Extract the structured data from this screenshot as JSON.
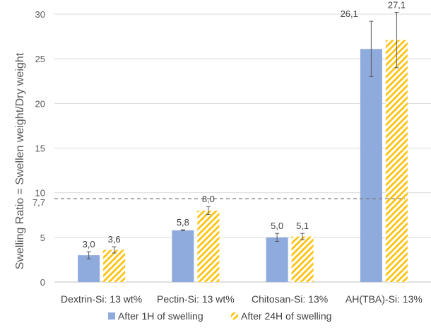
{
  "chart_data": {
    "type": "bar",
    "ylabel": "Swelling Ratio = Swellen weight/Dry weight",
    "xlabel": "",
    "ylim": [
      0,
      30
    ],
    "yticks": [
      0,
      5,
      10,
      15,
      20,
      25,
      30
    ],
    "grid": true,
    "legend_position": "bottom",
    "categories": [
      "Dextrin-Si: 13 wt%",
      "Pectin-Si: 13 wt%",
      "Chitosan-Si: 13%",
      "AH(TBA)-Si: 13%"
    ],
    "series": [
      {
        "name": "After 1H of swelling",
        "color": "#8faadc",
        "pattern": "solid",
        "values": [
          3.0,
          5.8,
          5.0,
          26.1
        ],
        "errors": [
          0.4,
          0.05,
          0.45,
          3.1
        ],
        "labels": [
          "3,0",
          "5,8",
          "5,0",
          "26,1"
        ]
      },
      {
        "name": "After 24H of swelling",
        "color": "#ffc000",
        "pattern": "diagonal-hatch",
        "values": [
          3.6,
          8.0,
          5.1,
          27.1
        ],
        "errors": [
          0.35,
          0.45,
          0.35,
          3.1
        ],
        "labels": [
          "3,6",
          "8,0",
          "5,1",
          "27,1"
        ]
      }
    ],
    "reference_line": {
      "value": 7.7,
      "label": "7,7",
      "style": "dashed",
      "color": "#7f7f7f"
    }
  }
}
